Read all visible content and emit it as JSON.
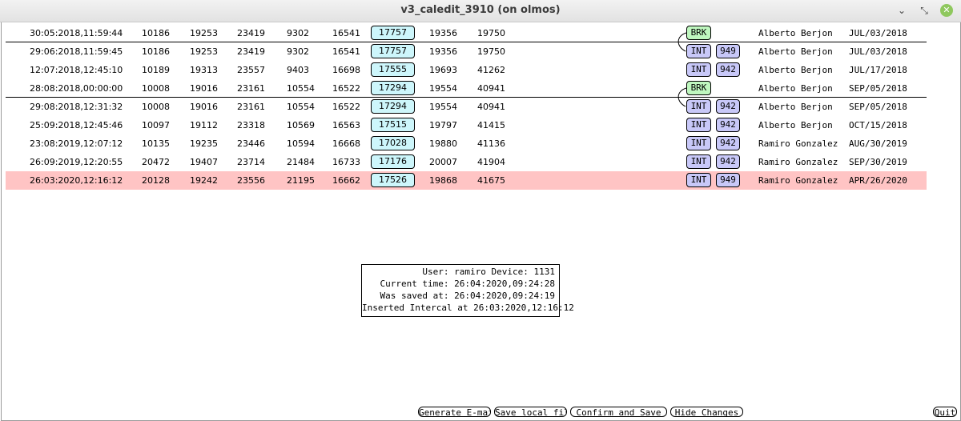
{
  "window": {
    "title": "v3_caledit_3910 (on olmos)",
    "min_glyph": "⌄",
    "max_glyph": "⤡",
    "close_glyph": "✕"
  },
  "rows": [
    {
      "datetime": "30:05:2018,11:59:44",
      "v1": "10186",
      "v2": "19253",
      "v3": "23419",
      "v4": "9302",
      "v5": "16541",
      "boxed": "17757",
      "v7": "19356",
      "v8": "19750",
      "tag": "BRK",
      "code": "",
      "user": "Alberto Berjon",
      "date": "JUL/03/2018",
      "highlighted": false
    },
    {
      "datetime": "29:06:2018,11:59:45",
      "v1": "10186",
      "v2": "19253",
      "v3": "23419",
      "v4": "9302",
      "v5": "16541",
      "boxed": "17757",
      "v7": "19356",
      "v8": "19750",
      "tag": "INT",
      "code": "949",
      "user": "Alberto Berjon",
      "date": "JUL/03/2018",
      "highlighted": false
    },
    {
      "datetime": "12:07:2018,12:45:10",
      "v1": "10189",
      "v2": "19313",
      "v3": "23557",
      "v4": "9403",
      "v5": "16698",
      "boxed": "17555",
      "v7": "19693",
      "v8": "41262",
      "tag": "INT",
      "code": "942",
      "user": "Alberto Berjon",
      "date": "JUL/17/2018",
      "highlighted": false
    },
    {
      "datetime": "28:08:2018,00:00:00",
      "v1": "10008",
      "v2": "19016",
      "v3": "23161",
      "v4": "10554",
      "v5": "16522",
      "boxed": "17294",
      "v7": "19554",
      "v8": "40941",
      "tag": "BRK",
      "code": "",
      "user": "Alberto Berjon",
      "date": "SEP/05/2018",
      "highlighted": false
    },
    {
      "datetime": "29:08:2018,12:31:32",
      "v1": "10008",
      "v2": "19016",
      "v3": "23161",
      "v4": "10554",
      "v5": "16522",
      "boxed": "17294",
      "v7": "19554",
      "v8": "40941",
      "tag": "INT",
      "code": "942",
      "user": "Alberto Berjon",
      "date": "SEP/05/2018",
      "highlighted": false
    },
    {
      "datetime": "25:09:2018,12:45:46",
      "v1": "10097",
      "v2": "19112",
      "v3": "23318",
      "v4": "10569",
      "v5": "16563",
      "boxed": "17515",
      "v7": "19797",
      "v8": "41415",
      "tag": "INT",
      "code": "942",
      "user": "Alberto Berjon",
      "date": "OCT/15/2018",
      "highlighted": false
    },
    {
      "datetime": "23:08:2019,12:07:12",
      "v1": "10135",
      "v2": "19235",
      "v3": "23446",
      "v4": "10594",
      "v5": "16668",
      "boxed": "17028",
      "v7": "19880",
      "v8": "41136",
      "tag": "INT",
      "code": "942",
      "user": "Ramiro Gonzalez",
      "date": "AUG/30/2019",
      "highlighted": false
    },
    {
      "datetime": "26:09:2019,12:20:55",
      "v1": "20472",
      "v2": "19407",
      "v3": "23714",
      "v4": "21484",
      "v5": "16733",
      "boxed": "17176",
      "v7": "20007",
      "v8": "41904",
      "tag": "INT",
      "code": "942",
      "user": "Ramiro Gonzalez",
      "date": "SEP/30/2019",
      "highlighted": false
    },
    {
      "datetime": "26:03:2020,12:16:12",
      "v1": "20128",
      "v2": "19242",
      "v3": "23556",
      "v4": "21195",
      "v5": "16662",
      "boxed": "17526",
      "v7": "19868",
      "v8": "41675",
      "tag": "INT",
      "code": "949",
      "user": "Ramiro Gonzalez",
      "date": "APR/26/2020",
      "highlighted": true
    }
  ],
  "info": {
    "user_line": "User: ramiro Device: 1131",
    "current_time": "Current time: 26:04:2020,09:24:28",
    "saved_at": "Was saved at: 26:04:2020,09:24:19",
    "inserted": "Inserted Intercal at 26:03:2020,12:16:12"
  },
  "buttons": {
    "generate_email": "Generate E-mail",
    "save_local": "Save local file",
    "confirm_save": "Confirm and Save",
    "hide_changes": "Hide Changes",
    "quit": "Quit"
  },
  "colors": {
    "highlight_row": "#ffc4c4",
    "boxed_cell": "#cdf6fb",
    "brk_tag": "#bff7bf",
    "int_tag": "#c8c8f8"
  }
}
